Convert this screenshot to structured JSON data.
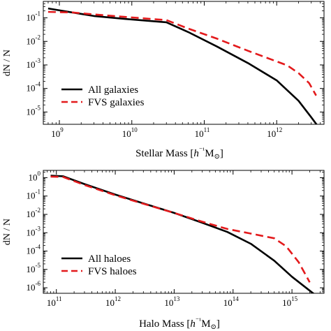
{
  "chart_data": [
    {
      "type": "line",
      "xlabel": "Stellar Mass [h⁻¹M⊙]",
      "xlabel_parts": [
        "Stellar Mass [",
        "h",
        "⁻¹",
        "M",
        "⊙",
        "]"
      ],
      "ylabel": "dN / N",
      "x_scale": "log",
      "y_scale": "log",
      "xlim": [
        600000000.0,
        4500000000000.0
      ],
      "ylim": [
        3e-06,
        0.5
      ],
      "x_ticks": [
        {
          "base": "10",
          "exp": "9",
          "value": 1000000000.0
        },
        {
          "base": "10",
          "exp": "10",
          "value": 10000000000.0
        },
        {
          "base": "10",
          "exp": "11",
          "value": 100000000000.0
        },
        {
          "base": "10",
          "exp": "12",
          "value": 1000000000000.0
        }
      ],
      "y_ticks": [
        {
          "base": "10",
          "exp": "-1",
          "value": 0.1
        },
        {
          "base": "10",
          "exp": "-2",
          "value": 0.01
        },
        {
          "base": "10",
          "exp": "-3",
          "value": 0.001
        },
        {
          "base": "10",
          "exp": "-4",
          "value": 0.0001
        },
        {
          "base": "10",
          "exp": "-5",
          "value": 1e-05
        }
      ],
      "legend_position": "lower-left",
      "series": [
        {
          "name": "All galaxies",
          "style": "solid",
          "color": "#000000",
          "x": [
            700000000.0,
            1500000000.0,
            3000000000.0,
            8000000000.0,
            30000000000.0,
            60000000000.0,
            150000000000.0,
            400000000000.0,
            1000000000000.0,
            2000000000000.0,
            3000000000000.0,
            4000000000000.0
          ],
          "y": [
            0.25,
            0.17,
            0.12,
            0.09,
            0.065,
            0.025,
            0.006,
            0.0012,
            0.00022,
            3e-05,
            6e-06,
            1.8e-06
          ]
        },
        {
          "name": "FVS galaxies",
          "style": "dashed",
          "color": "#e31a1c",
          "x": [
            700000000.0,
            1500000000.0,
            3000000000.0,
            8000000000.0,
            30000000000.0,
            60000000000.0,
            150000000000.0,
            400000000000.0,
            1000000000000.0,
            1400000000000.0,
            2000000000000.0,
            2800000000000.0,
            3500000000000.0
          ],
          "y": [
            0.18,
            0.17,
            0.14,
            0.11,
            0.08,
            0.035,
            0.013,
            0.004,
            0.0014,
            0.00095,
            0.00045,
            0.00017,
            5e-05
          ]
        }
      ]
    },
    {
      "type": "line",
      "xlabel": "Halo Mass [h⁻¹M⊙]",
      "xlabel_parts": [
        "Halo Mass [",
        "h",
        "⁻¹",
        "M",
        "⊙",
        "]"
      ],
      "ylabel": "dN / N",
      "x_scale": "log",
      "y_scale": "log",
      "xlim": [
        60000000000.0,
        3500000000000000.0
      ],
      "ylim": [
        5e-07,
        2.5
      ],
      "x_ticks": [
        {
          "base": "10",
          "exp": "11",
          "value": 100000000000.0
        },
        {
          "base": "10",
          "exp": "12",
          "value": 1000000000000.0
        },
        {
          "base": "10",
          "exp": "13",
          "value": 10000000000000.0
        },
        {
          "base": "10",
          "exp": "14",
          "value": 100000000000000.0
        },
        {
          "base": "10",
          "exp": "15",
          "value": 1000000000000000.0
        }
      ],
      "y_ticks": [
        {
          "base": "10",
          "exp": "0",
          "value": 1
        },
        {
          "base": "10",
          "exp": "-1",
          "value": 0.1
        },
        {
          "base": "10",
          "exp": "-2",
          "value": 0.01
        },
        {
          "base": "10",
          "exp": "-3",
          "value": 0.001
        },
        {
          "base": "10",
          "exp": "-4",
          "value": 0.0001
        },
        {
          "base": "10",
          "exp": "-5",
          "value": 1e-05
        },
        {
          "base": "10",
          "exp": "-6",
          "value": 1e-06
        }
      ],
      "legend_position": "lower-left",
      "series": [
        {
          "name": "All haloes",
          "style": "solid",
          "color": "#000000",
          "x": [
            80000000000.0,
            130000000000.0,
            300000000000.0,
            1000000000000.0,
            3000000000000.0,
            10000000000000.0,
            30000000000000.0,
            80000000000000.0,
            200000000000000.0,
            500000000000000.0,
            1000000000000000.0,
            2000000000000000.0,
            2500000000000000.0
          ],
          "y": [
            1.3,
            1.2,
            0.45,
            0.12,
            0.04,
            0.012,
            0.0035,
            0.0011,
            0.00025,
            3e-05,
            4e-06,
            7e-07,
            4e-07
          ]
        },
        {
          "name": "FVS haloes",
          "style": "dashed",
          "color": "#e31a1c",
          "x": [
            80000000000.0,
            130000000000.0,
            300000000000.0,
            1000000000000.0,
            3000000000000.0,
            10000000000000.0,
            30000000000000.0,
            80000000000000.0,
            200000000000000.0,
            500000000000000.0,
            800000000000000.0,
            1300000000000000.0,
            2000000000000000.0
          ],
          "y": [
            1.15,
            1.1,
            0.4,
            0.11,
            0.038,
            0.012,
            0.004,
            0.0016,
            0.0009,
            0.0005,
            0.00018,
            2.5e-05,
            2e-06
          ]
        }
      ]
    }
  ]
}
